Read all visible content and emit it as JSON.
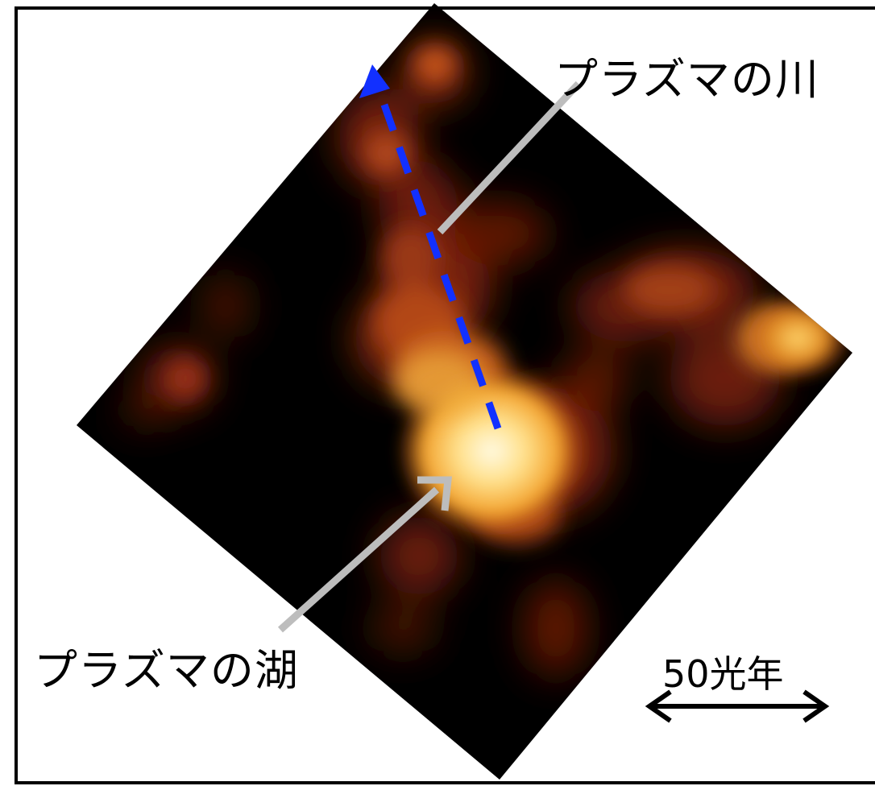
{
  "labels": {
    "river": "プラズマの川",
    "lake": "プラズマの湖",
    "scale": "50光年"
  },
  "icons": {
    "flow_arrow": "dashed-arrow",
    "pointer_river": "gray-line",
    "pointer_lake": "gray-arrow",
    "scale_bar": "double-headed-arrow"
  },
  "colors": {
    "background_map": "#000000",
    "plasma_glow": "#ffe79a",
    "plasma_core": "#fff7d0",
    "plasma_mid": "#e07a1a",
    "plasma_dim": "#7a1e0a",
    "flow_arrow": "#1230ff",
    "pointer": "#bdbdbd",
    "text": "#000000"
  }
}
